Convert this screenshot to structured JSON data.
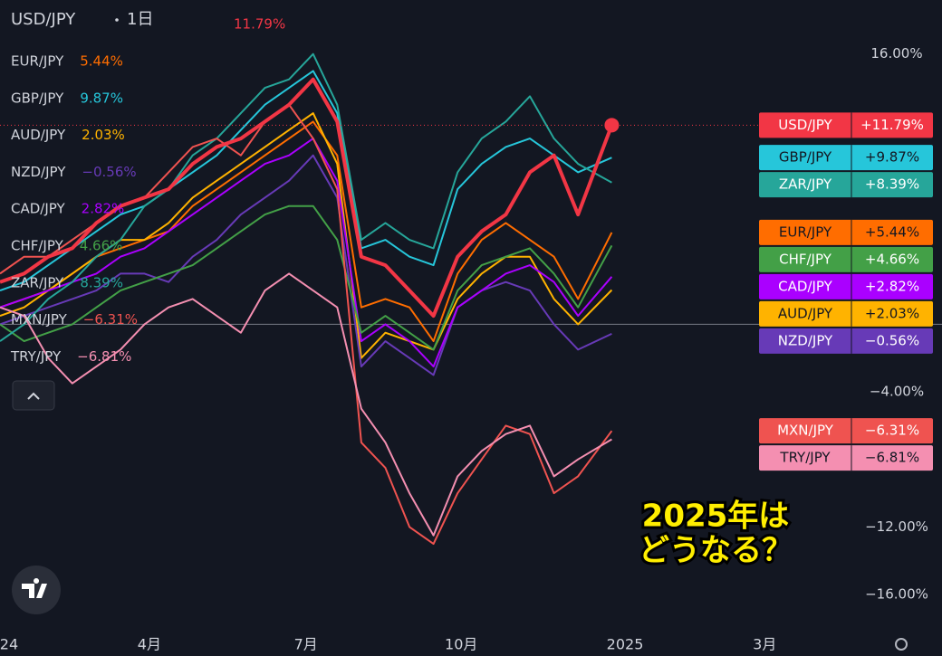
{
  "chart_data": {
    "type": "line",
    "title": "USD/JPY",
    "interval": "1日",
    "title_value_label": "11.79%",
    "annotation": [
      "2025年は",
      "どうなる？"
    ],
    "x": [
      0,
      2,
      4,
      6,
      8,
      10,
      12,
      14,
      16,
      18,
      20,
      22,
      24,
      26,
      28,
      30,
      32,
      34,
      36,
      38,
      40,
      42,
      44,
      46,
      48,
      50.8
    ],
    "xlim": [
      0,
      70.7
    ],
    "xticks": [
      {
        "value": 0.75,
        "label": "24"
      },
      {
        "value": 12.4,
        "label": "4月"
      },
      {
        "value": 25.4,
        "label": "7月"
      },
      {
        "value": 38.3,
        "label": "10月"
      },
      {
        "value": 51.9,
        "label": "2025"
      },
      {
        "value": 63.5,
        "label": "3月"
      }
    ],
    "ylim": [
      -18.3,
      19.2
    ],
    "yticks": [
      {
        "value": 16,
        "label": "16.00%"
      },
      {
        "value": -4,
        "label": "−4.00%"
      },
      {
        "value": -12,
        "label": "−12.00%"
      },
      {
        "value": -16,
        "label": "−16.00%"
      }
    ],
    "zero_line": true,
    "series": [
      {
        "name": "USD/JPY",
        "color": "#f23645",
        "text_color": "#ffffff",
        "width": 4,
        "tag_label": "+11.79%",
        "values": [
          2.5,
          3,
          4,
          4.5,
          6,
          7,
          7.5,
          8,
          9.5,
          10.5,
          11,
          12,
          13,
          14.5,
          12,
          4,
          3.5,
          2,
          0.5,
          4,
          5.5,
          6.5,
          9,
          10,
          6.5,
          11.79
        ]
      },
      {
        "name": "EUR/JPY",
        "color": "#ff6d00",
        "text_color": "#131722",
        "width": 2,
        "legend_label": "5.44%",
        "tag_label": "+5.44%",
        "values": [
          1,
          1.5,
          2,
          3,
          4,
          4.5,
          5,
          5.5,
          7,
          8,
          9,
          10,
          11,
          12,
          10,
          1,
          1.5,
          1,
          -1,
          3,
          5,
          6,
          5,
          4,
          1.5,
          5.44
        ]
      },
      {
        "name": "GBP/JPY",
        "color": "#26c6da",
        "text_color": "#131722",
        "width": 2,
        "legend_label": "9.87%",
        "tag_label": "+9.87%",
        "values": [
          2,
          2.5,
          3.5,
          4.5,
          5.5,
          6.5,
          7,
          8,
          9,
          10,
          11.5,
          13,
          14,
          15,
          12.5,
          4.5,
          5,
          4,
          3.5,
          8,
          9.5,
          10.5,
          11,
          10,
          9,
          9.87
        ]
      },
      {
        "name": "AUD/JPY",
        "color": "#ffb300",
        "text_color": "#131722",
        "width": 2,
        "legend_label": "2.03%",
        "tag_label": "+2.03%",
        "values": [
          0.5,
          1,
          2,
          3,
          4,
          5,
          5,
          6,
          7.5,
          8.5,
          9.5,
          10.5,
          11.5,
          12.5,
          9.5,
          -2,
          -0.5,
          -1,
          -1.5,
          1.5,
          3,
          4,
          4,
          1.5,
          0,
          2.03
        ]
      },
      {
        "name": "NZD/JPY",
        "color": "#673ab7",
        "text_color": "#ffffff",
        "width": 2,
        "legend_label": "−0.56%",
        "tag_label": "−0.56%",
        "values": [
          0,
          0.5,
          1,
          1.5,
          2,
          3,
          3,
          2.5,
          4,
          5,
          6.5,
          7.5,
          8.5,
          10,
          7.5,
          -2.5,
          -1,
          -2,
          -3,
          1,
          2,
          2.5,
          2,
          0,
          -1.5,
          -0.56
        ]
      },
      {
        "name": "CAD/JPY",
        "color": "#aa00ff",
        "text_color": "#ffffff",
        "width": 2,
        "legend_label": "2.82%",
        "tag_label": "+2.82%",
        "values": [
          1,
          1.5,
          2,
          2.5,
          3,
          4,
          4.5,
          5.5,
          6.5,
          7.5,
          8.5,
          9.5,
          10,
          11,
          8.5,
          -1,
          0,
          -1,
          -2.5,
          1,
          2,
          3,
          3.5,
          2.5,
          0.5,
          2.82
        ]
      },
      {
        "name": "CHF/JPY",
        "color": "#43a047",
        "text_color": "#ffffff",
        "width": 2,
        "legend_label": "4.66%",
        "tag_label": "+4.66%",
        "values": [
          0,
          -1,
          -0.5,
          0,
          1,
          2,
          2.5,
          3,
          3.5,
          4.5,
          5.5,
          6.5,
          7,
          7,
          5,
          -0.5,
          0.5,
          -0.5,
          -1.5,
          2,
          3.5,
          4,
          4.5,
          3,
          1,
          4.66
        ]
      },
      {
        "name": "ZAR/JPY",
        "color": "#26a69a",
        "text_color": "#ffffff",
        "width": 2,
        "legend_label": "8.39%",
        "tag_label": "+8.39%",
        "values": [
          -1,
          0,
          1.5,
          2.5,
          4,
          5,
          7,
          8,
          10,
          11,
          12.5,
          14,
          14.5,
          16,
          13,
          5,
          6,
          5,
          4.5,
          9,
          11,
          12,
          13.5,
          11,
          9.5,
          8.39
        ]
      },
      {
        "name": "MXN/JPY",
        "color": "#ef5350",
        "text_color": "#ffffff",
        "width": 2,
        "legend_label": "−6.31%",
        "tag_label": "−6.31%",
        "values": [
          3,
          4,
          4,
          5,
          6,
          7,
          7.5,
          9,
          10.5,
          11,
          10,
          12,
          13,
          11,
          8,
          -7,
          -8.5,
          -12,
          -13,
          -10,
          -8,
          -6,
          -6.5,
          -10,
          -9,
          -6.31
        ]
      },
      {
        "name": "TRY/JPY",
        "color": "#f48fb1",
        "text_color": "#131722",
        "width": 2,
        "legend_label": "−6.81%",
        "tag_label": "−6.81%",
        "values": [
          1,
          0.5,
          -2,
          -3.5,
          -2.5,
          -1.5,
          0,
          1,
          1.5,
          0.5,
          -0.5,
          2,
          3,
          2,
          1,
          -5,
          -7,
          -10,
          -12.5,
          -9,
          -7.5,
          -6.5,
          -6,
          -9,
          -8,
          -6.81
        ]
      }
    ]
  }
}
